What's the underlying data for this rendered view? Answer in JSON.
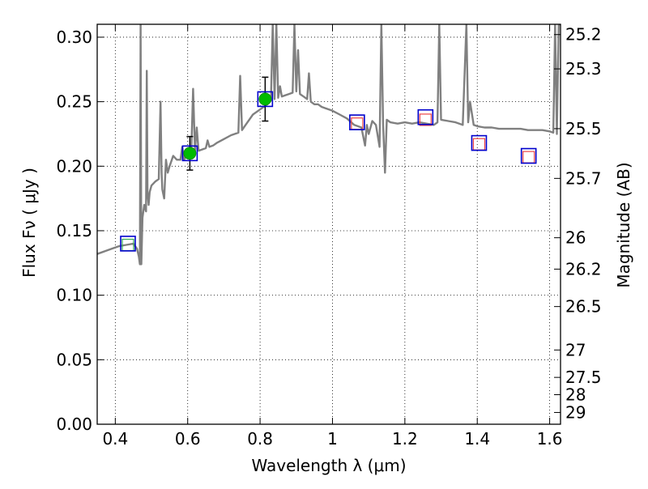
{
  "chart_data": {
    "type": "scatter",
    "xlabel": "Wavelength  λ (μm)",
    "ylabel": "Flux  Fν  ( μJy )",
    "y2label": "Magnitude (AB)",
    "xlim": [
      0.35,
      1.63
    ],
    "ylim": [
      0.0,
      0.31
    ],
    "grid": true,
    "x_ticks": [
      0.4,
      0.6,
      0.8,
      1.0,
      1.2,
      1.4,
      1.6
    ],
    "x_tick_labels": [
      "0.4",
      "0.6",
      "0.8",
      "1",
      "1.2",
      "1.4",
      "1.6"
    ],
    "y_ticks": [
      0.0,
      0.05,
      0.1,
      0.15,
      0.2,
      0.25,
      0.3
    ],
    "y_tick_labels": [
      "0.00",
      "0.05",
      "0.10",
      "0.15",
      "0.20",
      "0.25",
      "0.30"
    ],
    "mag_ticks": [
      25.2,
      25.3,
      25.5,
      25.7,
      26,
      26.2,
      26.5,
      27,
      27.5,
      28,
      29
    ],
    "mag_tick_labels": [
      "25.2",
      "25.3",
      "25.5",
      "25.7",
      "26",
      "26.2",
      "26.5",
      "27",
      "27.5",
      "28",
      "29"
    ],
    "observed_points": {
      "x": [
        0.606,
        0.814
      ],
      "y": [
        0.21,
        0.252
      ],
      "yerr": [
        0.013,
        0.017
      ],
      "color": "#00bb00"
    },
    "model_boxes": {
      "x": [
        0.435,
        0.606,
        0.814,
        1.068,
        1.257,
        1.405,
        1.542
      ],
      "y": [
        0.14,
        0.21,
        0.252,
        0.234,
        0.238,
        0.218,
        0.208
      ],
      "color": "#0000cc"
    },
    "inner_squares": {
      "x": [
        0.435,
        1.068,
        1.257,
        1.405,
        1.542
      ],
      "y": [
        0.139,
        0.233,
        0.236,
        0.217,
        0.207
      ],
      "colors": [
        "#33aa55",
        "#ee4444",
        "#ee4444",
        "#ee4444",
        "#ee4444"
      ]
    },
    "spectrum": {
      "color": "#808080",
      "x": [
        0.35,
        0.37,
        0.39,
        0.41,
        0.43,
        0.45,
        0.46,
        0.465,
        0.468,
        0.47,
        0.472,
        0.475,
        0.48,
        0.485,
        0.487,
        0.489,
        0.492,
        0.495,
        0.5,
        0.51,
        0.52,
        0.525,
        0.528,
        0.53,
        0.535,
        0.54,
        0.545,
        0.55,
        0.56,
        0.57,
        0.58,
        0.585,
        0.59,
        0.6,
        0.61,
        0.615,
        0.62,
        0.625,
        0.63,
        0.64,
        0.65,
        0.655,
        0.66,
        0.67,
        0.68,
        0.7,
        0.72,
        0.74,
        0.745,
        0.75,
        0.76,
        0.77,
        0.78,
        0.8,
        0.82,
        0.83,
        0.835,
        0.84,
        0.845,
        0.85,
        0.855,
        0.86,
        0.87,
        0.88,
        0.89,
        0.895,
        0.9,
        0.905,
        0.91,
        0.92,
        0.93,
        0.935,
        0.94,
        0.95,
        0.96,
        0.97,
        0.98,
        1.0,
        1.02,
        1.04,
        1.06,
        1.08,
        1.09,
        1.095,
        1.1,
        1.11,
        1.12,
        1.13,
        1.135,
        1.14,
        1.145,
        1.15,
        1.16,
        1.18,
        1.2,
        1.22,
        1.24,
        1.26,
        1.28,
        1.29,
        1.295,
        1.3,
        1.32,
        1.34,
        1.36,
        1.37,
        1.375,
        1.38,
        1.39,
        1.4,
        1.42,
        1.44,
        1.46,
        1.48,
        1.5,
        1.52,
        1.54,
        1.56,
        1.58,
        1.6,
        1.61,
        1.615,
        1.62,
        1.625,
        1.63
      ],
      "y": [
        0.132,
        0.134,
        0.136,
        0.138,
        0.139,
        0.14,
        0.136,
        0.13,
        0.124,
        0.31,
        0.124,
        0.16,
        0.17,
        0.165,
        0.274,
        0.18,
        0.17,
        0.18,
        0.185,
        0.188,
        0.19,
        0.25,
        0.195,
        0.182,
        0.175,
        0.205,
        0.195,
        0.2,
        0.208,
        0.205,
        0.205,
        0.215,
        0.205,
        0.21,
        0.212,
        0.26,
        0.212,
        0.23,
        0.212,
        0.213,
        0.214,
        0.22,
        0.215,
        0.216,
        0.218,
        0.221,
        0.224,
        0.226,
        0.27,
        0.228,
        0.232,
        0.236,
        0.24,
        0.244,
        0.248,
        0.251,
        0.31,
        0.252,
        0.31,
        0.253,
        0.262,
        0.254,
        0.255,
        0.256,
        0.257,
        0.31,
        0.258,
        0.29,
        0.256,
        0.254,
        0.252,
        0.272,
        0.25,
        0.248,
        0.248,
        0.246,
        0.245,
        0.243,
        0.24,
        0.237,
        0.232,
        0.23,
        0.216,
        0.232,
        0.225,
        0.235,
        0.232,
        0.215,
        0.31,
        0.232,
        0.195,
        0.236,
        0.234,
        0.233,
        0.234,
        0.233,
        0.234,
        0.233,
        0.232,
        0.234,
        0.31,
        0.236,
        0.235,
        0.234,
        0.232,
        0.31,
        0.234,
        0.25,
        0.232,
        0.231,
        0.23,
        0.23,
        0.229,
        0.229,
        0.229,
        0.229,
        0.228,
        0.228,
        0.228,
        0.227,
        0.226,
        0.31,
        0.225,
        0.31,
        0.31
      ]
    }
  }
}
